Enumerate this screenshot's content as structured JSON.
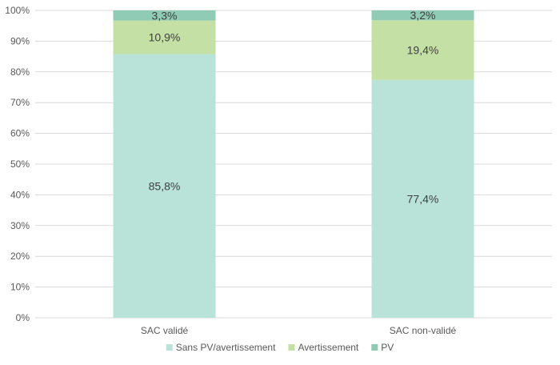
{
  "chart_data": {
    "type": "bar",
    "stacked": true,
    "percent": true,
    "categories": [
      "SAC validé",
      "SAC non-validé"
    ],
    "series": [
      {
        "name": "Sans PV/avertissement",
        "color": "#b9e3d9",
        "values": [
          85.8,
          77.4
        ],
        "labels": [
          "85,8%",
          "77,4%"
        ]
      },
      {
        "name": "Avertissement",
        "color": "#c5e0a5",
        "values": [
          10.9,
          19.4
        ],
        "labels": [
          "10,9%",
          "19,4%"
        ]
      },
      {
        "name": "PV",
        "color": "#8fcbb5",
        "values": [
          3.3,
          3.2
        ],
        "labels": [
          "3,3%",
          "3,2%"
        ]
      }
    ],
    "yticks": [
      "0%",
      "10%",
      "20%",
      "30%",
      "40%",
      "50%",
      "60%",
      "70%",
      "80%",
      "90%",
      "100%"
    ],
    "ylim": [
      0,
      100
    ],
    "grid": true,
    "legend": "bottom",
    "title": "",
    "xlabel": "",
    "ylabel": ""
  }
}
